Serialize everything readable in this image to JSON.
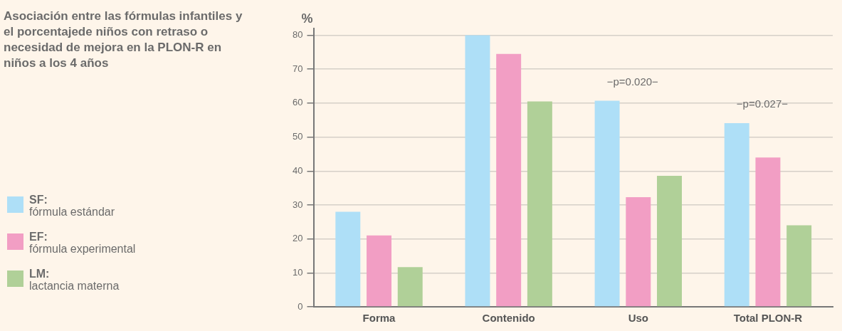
{
  "chart_data": {
    "type": "bar",
    "title": "Asociación entre las fórmulas infantiles y el porcentajede niños con retraso o necesidad de mejora en la PLON-R en niños a los 4 años",
    "ylabel": "%",
    "categories": [
      "Forma",
      "Contenido",
      "Uso",
      "Total PLON-R"
    ],
    "series": [
      {
        "name": "SF: fórmula estándar",
        "color": "#aedff7",
        "values": [
          28,
          80,
          60.7,
          54.1
        ]
      },
      {
        "name": "EF: fórmula experimental",
        "color": "#f29ec4",
        "values": [
          21,
          74.5,
          32.3,
          44
        ]
      },
      {
        "name": "LM: lactancia materna",
        "color": "#b0d098",
        "values": [
          11.7,
          60.5,
          38.6,
          24
        ]
      }
    ],
    "annotations": [
      "−p=0.020−",
      "−p=0.027−"
    ],
    "ylim": [
      0,
      82
    ],
    "yticks": [
      0,
      10,
      20,
      30,
      40,
      50,
      60,
      70,
      80
    ],
    "grid": "y",
    "legend": "left"
  }
}
